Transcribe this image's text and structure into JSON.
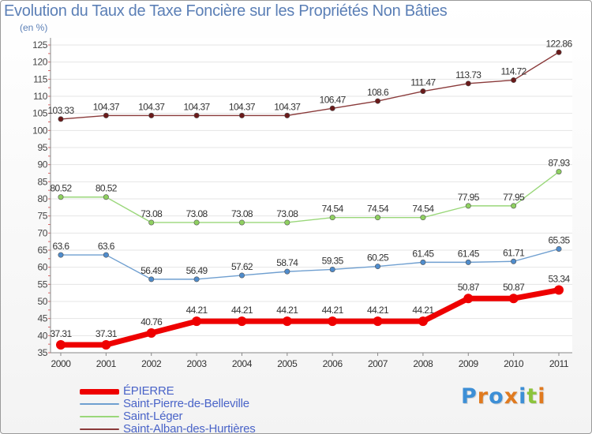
{
  "title": "Evolution du Taux de Taxe Foncière sur les Propriétés Non Bâties",
  "unit_label": "(en %)",
  "logo": {
    "text": "Proxiti",
    "colors": [
      "#3d8fd6",
      "#e07a1f",
      "#3d8fd6",
      "#e07a1f",
      "#3d8fd6",
      "#8cc43c",
      "#e07a1f"
    ]
  },
  "chart_data": {
    "type": "line",
    "title": "Evolution du Taux de Taxe Foncière sur les Propriétés Non Bâties",
    "ylabel": "(en %)",
    "xlabel": "",
    "x": [
      "2000",
      "2001",
      "2002",
      "2003",
      "2004",
      "2005",
      "2006",
      "2007",
      "2008",
      "2009",
      "2010",
      "2011"
    ],
    "ylim": [
      35,
      125
    ],
    "yticks": [
      35,
      40,
      45,
      50,
      55,
      60,
      65,
      70,
      75,
      80,
      85,
      90,
      95,
      100,
      105,
      110,
      115,
      120,
      125
    ],
    "grid": "horizontal",
    "legend_position": "bottom-left",
    "series": [
      {
        "name": "ÉPIERRE",
        "color": "#ee0000",
        "point_color": "#ee0000",
        "values": [
          37.31,
          37.31,
          40.76,
          44.21,
          44.21,
          44.21,
          44.21,
          44.21,
          44.21,
          50.87,
          50.87,
          53.34
        ],
        "labels": [
          "37.31",
          "37.31",
          "40.76",
          "44.21",
          "44.21",
          "44.21",
          "44.21",
          "44.21",
          "44.21",
          "50.87",
          "50.87",
          "53.34"
        ]
      },
      {
        "name": "Saint-Pierre-de-Belleville",
        "color": "#6f9fd0",
        "point_color": "#4f8ccc",
        "values": [
          63.6,
          63.6,
          56.49,
          56.49,
          57.62,
          58.74,
          59.35,
          60.25,
          61.45,
          61.45,
          61.71,
          65.35
        ],
        "labels": [
          "63.6",
          "63.6",
          "56.49",
          "56.49",
          "57.62",
          "58.74",
          "59.35",
          "60.25",
          "61.45",
          "61.45",
          "61.71",
          "65.35"
        ]
      },
      {
        "name": "Saint-Léger",
        "color": "#9ad77a",
        "point_color": "#8fd060",
        "values": [
          80.52,
          80.52,
          73.08,
          73.08,
          73.08,
          73.08,
          74.54,
          74.54,
          74.54,
          77.95,
          77.95,
          87.93
        ],
        "labels": [
          "80.52",
          "80.52",
          "73.08",
          "73.08",
          "73.08",
          "73.08",
          "74.54",
          "74.54",
          "74.54",
          "77.95",
          "77.95",
          "87.93"
        ]
      },
      {
        "name": "Saint-Alban-des-Hurtières",
        "color": "#8a3a3a",
        "point_color": "#6a1a1a",
        "values": [
          103.33,
          104.37,
          104.37,
          104.37,
          104.37,
          104.37,
          106.47,
          108.6,
          111.47,
          113.73,
          114.72,
          122.86
        ],
        "labels": [
          "103.33",
          "104.37",
          "104.37",
          "104.37",
          "104.37",
          "104.37",
          "106.47",
          "108.6",
          "111.47",
          "113.73",
          "114.72",
          "122.86"
        ]
      }
    ]
  }
}
